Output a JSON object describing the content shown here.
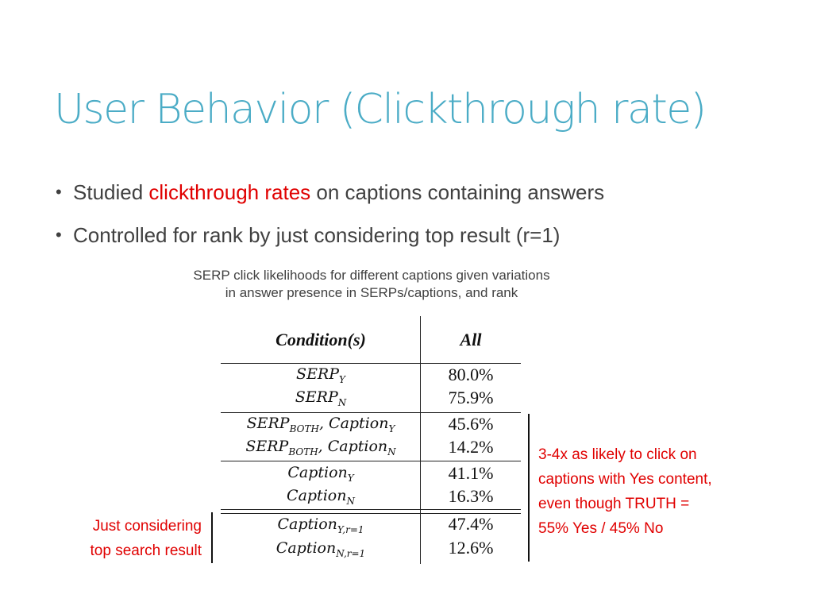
{
  "slide": {
    "title": "User Behavior (Clickthrough rate)",
    "bullets": [
      {
        "pre": "Studied ",
        "highlight": "clickthrough rates",
        "post": " on captions containing answers"
      },
      {
        "pre": "Controlled for rank by just considering top result (r=1)",
        "highlight": "",
        "post": ""
      }
    ],
    "caption_line1": "SERP click likelihoods for different captions given variations",
    "caption_line2": "in answer presence in SERPs/captions, and rank",
    "table": {
      "header_condition": "Condition(s)",
      "header_value": "All",
      "rows": [
        {
          "base": "SERP",
          "sub": "Y",
          "base2": "",
          "sub2": "",
          "value": "80.0%"
        },
        {
          "base": "SERP",
          "sub": "N",
          "base2": "",
          "sub2": "",
          "value": "75.9%"
        },
        {
          "base": "SERP",
          "sub": "BOTH",
          "base2": ", Caption",
          "sub2": "Y",
          "value": "45.6%"
        },
        {
          "base": "SERP",
          "sub": "BOTH",
          "base2": ", Caption",
          "sub2": "N",
          "value": "14.2%"
        },
        {
          "base": "Caption",
          "sub": "Y",
          "base2": "",
          "sub2": "",
          "value": "41.1%"
        },
        {
          "base": "Caption",
          "sub": "N",
          "base2": "",
          "sub2": "",
          "value": "16.3%"
        },
        {
          "base": "Caption",
          "sub": "Y,r=1",
          "base2": "",
          "sub2": "",
          "value": "47.4%"
        },
        {
          "base": "Caption",
          "sub": "N,r=1",
          "base2": "",
          "sub2": "",
          "value": "12.6%"
        }
      ]
    },
    "note_right": [
      "3-4x as likely to click on",
      "captions with Yes content,",
      "even though TRUTH =",
      "55% Yes / 45% No"
    ],
    "note_left": [
      "Just considering",
      "top search result"
    ],
    "colors": {
      "title": "#4bacc6",
      "highlight": "#e00000",
      "text": "#404040"
    }
  }
}
